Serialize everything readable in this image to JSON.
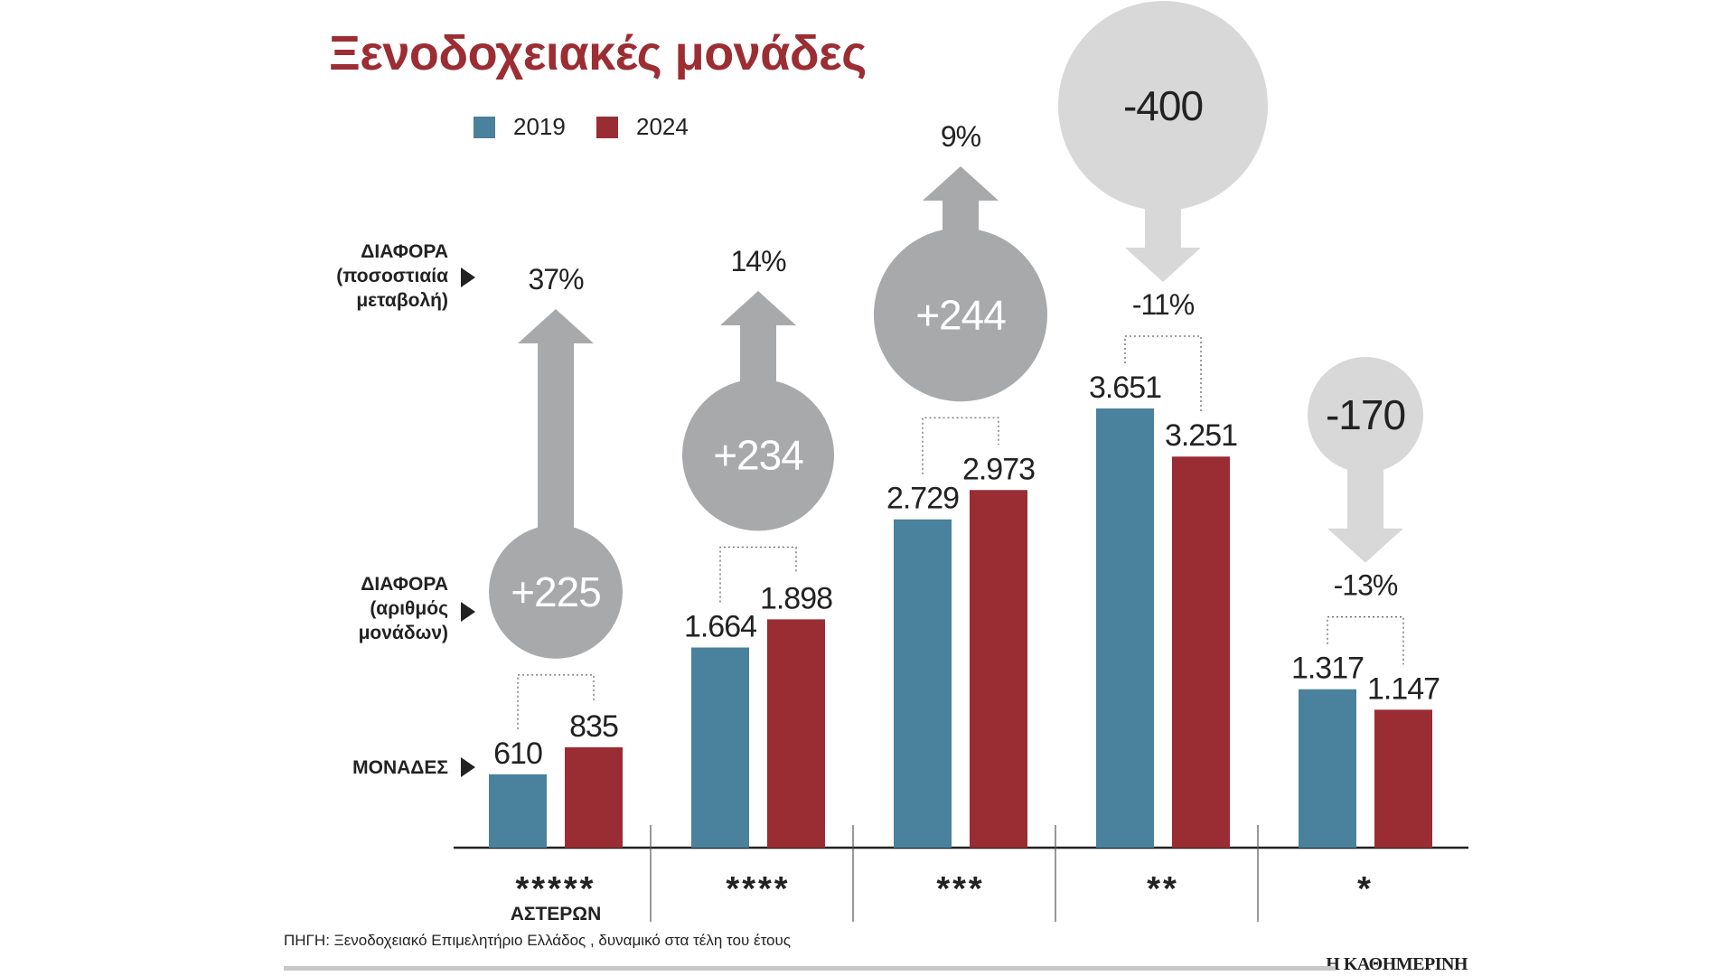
{
  "title": "Ξενοδοχειακές μονάδες",
  "legend": [
    {
      "label": "2019",
      "color": "#4a819c"
    },
    {
      "label": "2024",
      "color": "#9a2c33"
    }
  ],
  "side_labels": {
    "pct_change": [
      "ΔΙΑΦΟΡΑ",
      "(ποσοστιαία",
      "μεταβολή)"
    ],
    "abs_change": [
      "ΔΙΑΦΟΡΑ",
      "(αριθμός",
      "μονάδων)"
    ],
    "units": [
      "ΜΟΝΑΔΕΣ"
    ]
  },
  "source": "ΠΗΓΗ: Ξενοδοχειακό Επιμελητήριο Ελλάδος , δυναμικό στα τέλη του έτους",
  "brand": "Η ΚΑΘΗΜΕΡΙΝΗ",
  "colors": {
    "up": "#a8a9ab",
    "down": "#d8d8d8",
    "text": "#222222"
  },
  "chart_data": {
    "type": "bar",
    "categories": [
      "*****",
      "****",
      "***",
      "**",
      "*"
    ],
    "category_sublabels": [
      "ΑΣΤΕΡΩΝ",
      "",
      "",
      "",
      ""
    ],
    "series": [
      {
        "name": "2019",
        "values": [
          610,
          1664,
          2729,
          3651,
          1317
        ]
      },
      {
        "name": "2024",
        "values": [
          835,
          1898,
          2973,
          3251,
          1147
        ]
      }
    ],
    "value_labels": {
      "2019": [
        "610",
        "1.664",
        "2.729",
        "3.651",
        "1.317"
      ],
      "2024": [
        "835",
        "1.898",
        "2.973",
        "3.251",
        "1.147"
      ]
    },
    "difference_labels": [
      "+225",
      "+234",
      "+244",
      "-400",
      "-170"
    ],
    "percent_labels": [
      "37%",
      "14%",
      "9%",
      "-11%",
      "-13%"
    ],
    "direction": [
      "up",
      "up",
      "up",
      "down",
      "down"
    ],
    "ylim": [
      0,
      3651
    ]
  }
}
